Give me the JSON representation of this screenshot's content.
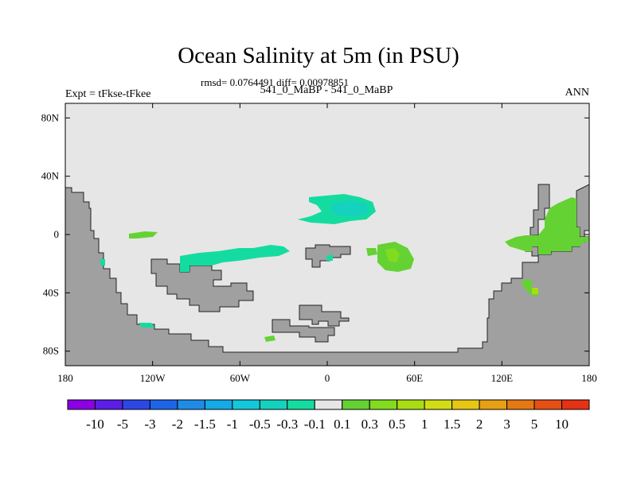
{
  "title": "Ocean Salinity at 5m (in PSU)",
  "stats_line": "rmsd= 0.0764491 diff= 0.00978851",
  "left_label": "Expt = tFkse-tFkee",
  "center_label": "541_0_MaBP - 541_0_MaBP",
  "right_label": "ANN",
  "chart_data": {
    "type": "heatmap",
    "x_ticks": [
      {
        "value": -180,
        "label": "180"
      },
      {
        "value": -120,
        "label": "120W"
      },
      {
        "value": -60,
        "label": "60W"
      },
      {
        "value": 0,
        "label": "0"
      },
      {
        "value": 60,
        "label": "60E"
      },
      {
        "value": 120,
        "label": "120E"
      },
      {
        "value": 180,
        "label": "180"
      }
    ],
    "y_ticks": [
      {
        "value": 80,
        "label": "80N"
      },
      {
        "value": 40,
        "label": "40N"
      },
      {
        "value": 0,
        "label": "0"
      },
      {
        "value": -40,
        "label": "40S"
      },
      {
        "value": -80,
        "label": "80S"
      }
    ],
    "xlim": [
      -180,
      180
    ],
    "ylim": [
      -90,
      90
    ],
    "land_color": "#a0a0a0",
    "ocean_near_zero_color": "#e6e6e6",
    "colorbar": {
      "levels": [
        "-10",
        "-5",
        "-3",
        "-2",
        "-1.5",
        "-1",
        "-0.5",
        "-0.3",
        "-0.1",
        "0.1",
        "0.3",
        "0.5",
        "1",
        "1.5",
        "2",
        "3",
        "5",
        "10"
      ],
      "colors": [
        "#8c00e6",
        "#5a1ee6",
        "#2d46e6",
        "#1e64e6",
        "#1e8ce6",
        "#14aae6",
        "#14c8dc",
        "#14d2be",
        "#14dca0",
        "#e6e6e6",
        "#64d232",
        "#82dc1e",
        "#aadc14",
        "#d2dc14",
        "#e6c814",
        "#e6a014",
        "#e67814",
        "#e65014",
        "#e63214"
      ]
    }
  }
}
